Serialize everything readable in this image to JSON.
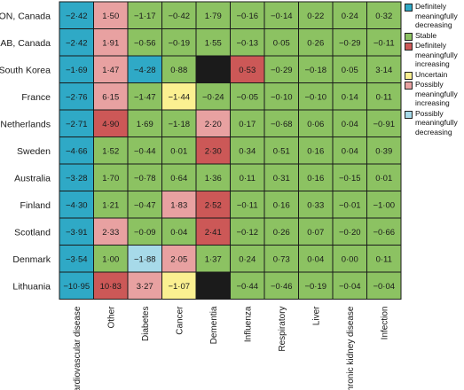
{
  "chart_data": {
    "type": "heatmap",
    "rows": [
      "ON, Canada",
      "AB, Canada",
      "South Korea",
      "France",
      "Netherlands",
      "Sweden",
      "Australia",
      "Finland",
      "Scotland",
      "Denmark",
      "Lithuania"
    ],
    "columns": [
      "Cardiovascular disease",
      "Other",
      "Diabetes",
      "Cancer",
      "Dementia",
      "Influenza",
      "Respiratory",
      "Liver",
      "Chronic kidney disease",
      "Infection"
    ],
    "categories": {
      "DD": {
        "label": "Definitely meaningfully decreasing",
        "color": "#2fa9c6"
      },
      "S": {
        "label": "Stable",
        "color": "#8cc262"
      },
      "DI": {
        "label": "Definitely meaningfully increasing",
        "color": "#cc5857"
      },
      "U": {
        "label": "Uncertain",
        "color": "#fbf091"
      },
      "PI": {
        "label": "Possibly meaningfully increasing",
        "color": "#e8a1a1"
      },
      "PD": {
        "label": "Possibly meaningfully decreasing",
        "color": "#a7dae9"
      },
      "NA": {
        "label": "",
        "color": "#1b1b1b"
      }
    },
    "legend_order": [
      "DD",
      "S",
      "DI",
      "U",
      "PI",
      "PD"
    ],
    "cells": [
      [
        {
          "v": "−2·42",
          "c": "DD"
        },
        {
          "v": "1·50",
          "c": "PI"
        },
        {
          "v": "−1·17",
          "c": "S"
        },
        {
          "v": "−0·42",
          "c": "S"
        },
        {
          "v": "1·79",
          "c": "S"
        },
        {
          "v": "−0·16",
          "c": "S"
        },
        {
          "v": "−0·14",
          "c": "S"
        },
        {
          "v": "0·22",
          "c": "S"
        },
        {
          "v": "0·24",
          "c": "S"
        },
        {
          "v": "0·32",
          "c": "S"
        }
      ],
      [
        {
          "v": "−2·42",
          "c": "DD"
        },
        {
          "v": "1·91",
          "c": "PI"
        },
        {
          "v": "−0·56",
          "c": "S"
        },
        {
          "v": "−0·19",
          "c": "S"
        },
        {
          "v": "1·55",
          "c": "S"
        },
        {
          "v": "−0·13",
          "c": "S"
        },
        {
          "v": "0·05",
          "c": "S"
        },
        {
          "v": "0·26",
          "c": "S"
        },
        {
          "v": "−0·29",
          "c": "S"
        },
        {
          "v": "−0·11",
          "c": "S"
        }
      ],
      [
        {
          "v": "−1·69",
          "c": "DD"
        },
        {
          "v": "1·47",
          "c": "PI"
        },
        {
          "v": "−4·28",
          "c": "DD"
        },
        {
          "v": "0·88",
          "c": "S"
        },
        {
          "v": "",
          "c": "NA"
        },
        {
          "v": "0·53",
          "c": "DI"
        },
        {
          "v": "−0·29",
          "c": "S"
        },
        {
          "v": "−0·18",
          "c": "S"
        },
        {
          "v": "0·05",
          "c": "S"
        },
        {
          "v": "3·14",
          "c": "S"
        }
      ],
      [
        {
          "v": "−2·76",
          "c": "DD"
        },
        {
          "v": "6·15",
          "c": "PI"
        },
        {
          "v": "−1·47",
          "c": "S"
        },
        {
          "v": "−1·44",
          "c": "U"
        },
        {
          "v": "−0·24",
          "c": "S"
        },
        {
          "v": "−0·05",
          "c": "S"
        },
        {
          "v": "−0·10",
          "c": "S"
        },
        {
          "v": "−0·10",
          "c": "S"
        },
        {
          "v": "0·14",
          "c": "S"
        },
        {
          "v": "0·11",
          "c": "S"
        }
      ],
      [
        {
          "v": "−2·71",
          "c": "DD"
        },
        {
          "v": "4·90",
          "c": "DI"
        },
        {
          "v": "1·69",
          "c": "S"
        },
        {
          "v": "−1·18",
          "c": "S"
        },
        {
          "v": "2·20",
          "c": "PI"
        },
        {
          "v": "0·17",
          "c": "S"
        },
        {
          "v": "−0·68",
          "c": "S"
        },
        {
          "v": "0·06",
          "c": "S"
        },
        {
          "v": "0·04",
          "c": "S"
        },
        {
          "v": "−0·91",
          "c": "S"
        }
      ],
      [
        {
          "v": "−4·66",
          "c": "DD"
        },
        {
          "v": "1·52",
          "c": "S"
        },
        {
          "v": "−0·44",
          "c": "S"
        },
        {
          "v": "0·01",
          "c": "S"
        },
        {
          "v": "2·30",
          "c": "DI"
        },
        {
          "v": "0·34",
          "c": "S"
        },
        {
          "v": "0·51",
          "c": "S"
        },
        {
          "v": "0·16",
          "c": "S"
        },
        {
          "v": "0·04",
          "c": "S"
        },
        {
          "v": "0·39",
          "c": "S"
        }
      ],
      [
        {
          "v": "−3·28",
          "c": "DD"
        },
        {
          "v": "1·70",
          "c": "S"
        },
        {
          "v": "−0·78",
          "c": "S"
        },
        {
          "v": "0·64",
          "c": "S"
        },
        {
          "v": "1·36",
          "c": "S"
        },
        {
          "v": "0·11",
          "c": "S"
        },
        {
          "v": "0·31",
          "c": "S"
        },
        {
          "v": "0·16",
          "c": "S"
        },
        {
          "v": "−0·15",
          "c": "S"
        },
        {
          "v": "0·01",
          "c": "S"
        }
      ],
      [
        {
          "v": "−4·30",
          "c": "DD"
        },
        {
          "v": "1·21",
          "c": "S"
        },
        {
          "v": "−0·47",
          "c": "S"
        },
        {
          "v": "1·83",
          "c": "PI"
        },
        {
          "v": "2·52",
          "c": "DI"
        },
        {
          "v": "−0·11",
          "c": "S"
        },
        {
          "v": "0·16",
          "c": "S"
        },
        {
          "v": "0·33",
          "c": "S"
        },
        {
          "v": "−0·01",
          "c": "S"
        },
        {
          "v": "−1·00",
          "c": "S"
        }
      ],
      [
        {
          "v": "−3·91",
          "c": "DD"
        },
        {
          "v": "2·33",
          "c": "PI"
        },
        {
          "v": "−0·09",
          "c": "S"
        },
        {
          "v": "0·04",
          "c": "S"
        },
        {
          "v": "2·41",
          "c": "DI"
        },
        {
          "v": "−0·12",
          "c": "S"
        },
        {
          "v": "0·26",
          "c": "S"
        },
        {
          "v": "0·07",
          "c": "S"
        },
        {
          "v": "−0·20",
          "c": "S"
        },
        {
          "v": "−0·66",
          "c": "S"
        }
      ],
      [
        {
          "v": "−3·54",
          "c": "DD"
        },
        {
          "v": "1·00",
          "c": "S"
        },
        {
          "v": "−1·88",
          "c": "PD"
        },
        {
          "v": "2·05",
          "c": "PI"
        },
        {
          "v": "1·37",
          "c": "S"
        },
        {
          "v": "0·24",
          "c": "S"
        },
        {
          "v": "0·73",
          "c": "S"
        },
        {
          "v": "0·04",
          "c": "S"
        },
        {
          "v": "0·00",
          "c": "S"
        },
        {
          "v": "0·11",
          "c": "S"
        }
      ],
      [
        {
          "v": "−10·95",
          "c": "DD"
        },
        {
          "v": "10·83",
          "c": "DI"
        },
        {
          "v": "3·27",
          "c": "PI"
        },
        {
          "v": "−1·07",
          "c": "U"
        },
        {
          "v": "",
          "c": "NA"
        },
        {
          "v": "−0·44",
          "c": "S"
        },
        {
          "v": "−0·46",
          "c": "S"
        },
        {
          "v": "−0·19",
          "c": "S"
        },
        {
          "v": "−0·04",
          "c": "S"
        },
        {
          "v": "−0·04",
          "c": "S"
        }
      ]
    ]
  }
}
